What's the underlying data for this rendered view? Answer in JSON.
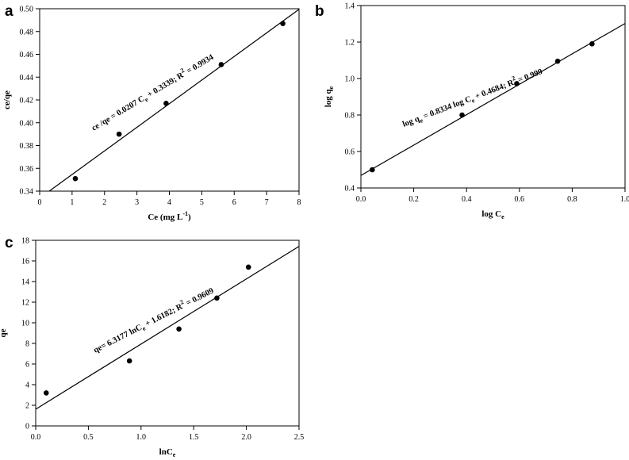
{
  "chart_data": [
    {
      "panel": "a",
      "type": "scatter",
      "xlabel": "Ce (mg L",
      "xlabel_sup": "-1",
      "xlabel_end": ")",
      "ylabel": "ce/qe",
      "xlim": [
        0,
        8
      ],
      "ylim": [
        0.34,
        0.5
      ],
      "xticks": [
        "0",
        "1",
        "2",
        "3",
        "4",
        "5",
        "6",
        "7",
        "8"
      ],
      "yticks": [
        "0.34",
        "0.36",
        "0.38",
        "0.40",
        "0.42",
        "0.44",
        "0.46",
        "0.48",
        "0.50"
      ],
      "points": [
        {
          "x": 1.1,
          "y": 0.351
        },
        {
          "x": 2.45,
          "y": 0.39
        },
        {
          "x": 3.9,
          "y": 0.417
        },
        {
          "x": 5.6,
          "y": 0.451
        },
        {
          "x": 7.5,
          "y": 0.487
        }
      ],
      "fit": {
        "slope": 0.0207,
        "intercept": 0.3339
      },
      "equation": "ce /qe = 0.0207 C",
      "equation_sub": "e",
      "equation_mid": " + 0.3339;   R",
      "equation_sup": "2",
      "equation_end": " = 0.9934"
    },
    {
      "panel": "b",
      "type": "scatter",
      "xlabel": "log C",
      "xlabel_sub": "e",
      "ylabel": "log q",
      "ylabel_sub": "e",
      "xlim": [
        0,
        1.0
      ],
      "ylim": [
        0.4,
        1.4
      ],
      "xticks": [
        "0.0",
        "0.2",
        "0.4",
        "0.6",
        "0.8",
        "1.0"
      ],
      "yticks": [
        "0.4",
        "0.6",
        "0.8",
        "1.0",
        "1.2",
        "1.4"
      ],
      "points": [
        {
          "x": 0.043,
          "y": 0.5
        },
        {
          "x": 0.383,
          "y": 0.8
        },
        {
          "x": 0.59,
          "y": 0.972
        },
        {
          "x": 0.745,
          "y": 1.095
        },
        {
          "x": 0.875,
          "y": 1.19
        }
      ],
      "fit": {
        "slope": 0.8334,
        "intercept": 0.4684
      },
      "equation": "log q",
      "equation_sub": "e",
      "equation_mid": " = 0.8334 log C",
      "equation_sub2": "e",
      "equation_mid2": " + 0.4684;   R",
      "equation_sup": "2",
      "equation_end": " = 0.999"
    },
    {
      "panel": "c",
      "type": "scatter",
      "xlabel": "lnC",
      "xlabel_sub": "e",
      "ylabel": "qe",
      "xlim": [
        0,
        2.5
      ],
      "ylim": [
        0,
        18
      ],
      "xticks": [
        "0.0",
        "0.5",
        "1.0",
        "1.5",
        "2.0",
        "2.5"
      ],
      "yticks": [
        "0",
        "2",
        "4",
        "6",
        "8",
        "10",
        "12",
        "14",
        "16",
        "18"
      ],
      "points": [
        {
          "x": 0.1,
          "y": 3.2
        },
        {
          "x": 0.89,
          "y": 6.3
        },
        {
          "x": 1.36,
          "y": 9.4
        },
        {
          "x": 1.72,
          "y": 12.4
        },
        {
          "x": 2.02,
          "y": 15.4
        }
      ],
      "fit": {
        "slope": 6.3177,
        "intercept": 1.6182
      },
      "equation": "qe= 6.3177 lnC",
      "equation_sub": "e",
      "equation_mid": " + 1.6182;   R",
      "equation_sup": "2",
      "equation_end": " = 0.9609"
    }
  ]
}
